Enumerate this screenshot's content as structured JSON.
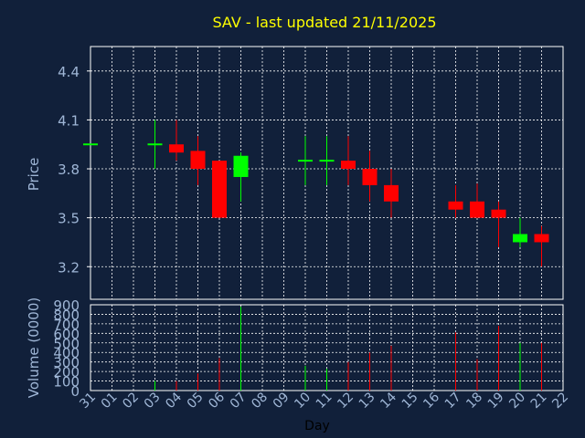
{
  "colors": {
    "background": "#11203a",
    "title": "#ffff00",
    "axis_text": "#9fb6d6",
    "xlabel": "#000000",
    "grid": "#ffffff",
    "up": "#00ff00",
    "down": "#ff0000"
  },
  "chart_data": {
    "type": "candlestick",
    "title": "SAV - last updated 21/11/2025",
    "xlabel": "Day",
    "ylabel_price": "Price",
    "ylabel_volume": "Volume (0000)",
    "price_ylim": [
      3.0,
      4.55
    ],
    "price_yticks": [
      "4.4",
      "4.1",
      "3.8",
      "3.5",
      "3.2"
    ],
    "volume_ylim": [
      0,
      900
    ],
    "volume_yticks": [
      "0",
      "100",
      "200",
      "300",
      "400",
      "500",
      "600",
      "700",
      "800",
      "900"
    ],
    "x_ticks": [
      "31",
      "01",
      "02",
      "03",
      "04",
      "05",
      "06",
      "07",
      "08",
      "09",
      "10",
      "11",
      "12",
      "13",
      "14",
      "15",
      "16",
      "17",
      "18",
      "19",
      "20",
      "21",
      "22"
    ],
    "grid": true,
    "candles": [
      {
        "day": "31",
        "open": 3.95,
        "high": 3.95,
        "low": 3.95,
        "close": 3.95,
        "volume": 0
      },
      {
        "day": "03",
        "open": 3.95,
        "high": 4.1,
        "low": 3.8,
        "close": 3.95,
        "volume": 100
      },
      {
        "day": "04",
        "open": 3.95,
        "high": 4.1,
        "low": 3.85,
        "close": 3.9,
        "volume": 100
      },
      {
        "day": "05",
        "open": 3.91,
        "high": 4.0,
        "low": 3.7,
        "close": 3.8,
        "volume": 180
      },
      {
        "day": "06",
        "open": 3.85,
        "high": 3.85,
        "low": 3.5,
        "close": 3.5,
        "volume": 340
      },
      {
        "day": "07",
        "open": 3.75,
        "high": 3.9,
        "low": 3.6,
        "close": 3.88,
        "volume": 880
      },
      {
        "day": "10",
        "open": 3.85,
        "high": 4.0,
        "low": 3.7,
        "close": 3.85,
        "volume": 260
      },
      {
        "day": "11",
        "open": 3.85,
        "high": 4.0,
        "low": 3.7,
        "close": 3.85,
        "volume": 230
      },
      {
        "day": "12",
        "open": 3.85,
        "high": 4.0,
        "low": 3.7,
        "close": 3.8,
        "volume": 300
      },
      {
        "day": "13",
        "open": 3.8,
        "high": 3.91,
        "low": 3.6,
        "close": 3.7,
        "volume": 400
      },
      {
        "day": "14",
        "open": 3.7,
        "high": 3.8,
        "low": 3.5,
        "close": 3.6,
        "volume": 470
      },
      {
        "day": "17",
        "open": 3.6,
        "high": 3.7,
        "low": 3.5,
        "close": 3.55,
        "volume": 610
      },
      {
        "day": "18",
        "open": 3.6,
        "high": 3.71,
        "low": 3.5,
        "close": 3.5,
        "volume": 330
      },
      {
        "day": "19",
        "open": 3.55,
        "high": 3.6,
        "low": 3.32,
        "close": 3.5,
        "volume": 680
      },
      {
        "day": "20",
        "open": 3.35,
        "high": 3.5,
        "low": 3.32,
        "close": 3.4,
        "volume": 500
      },
      {
        "day": "21",
        "open": 3.4,
        "high": 3.45,
        "low": 3.2,
        "close": 3.35,
        "volume": 500
      }
    ]
  }
}
